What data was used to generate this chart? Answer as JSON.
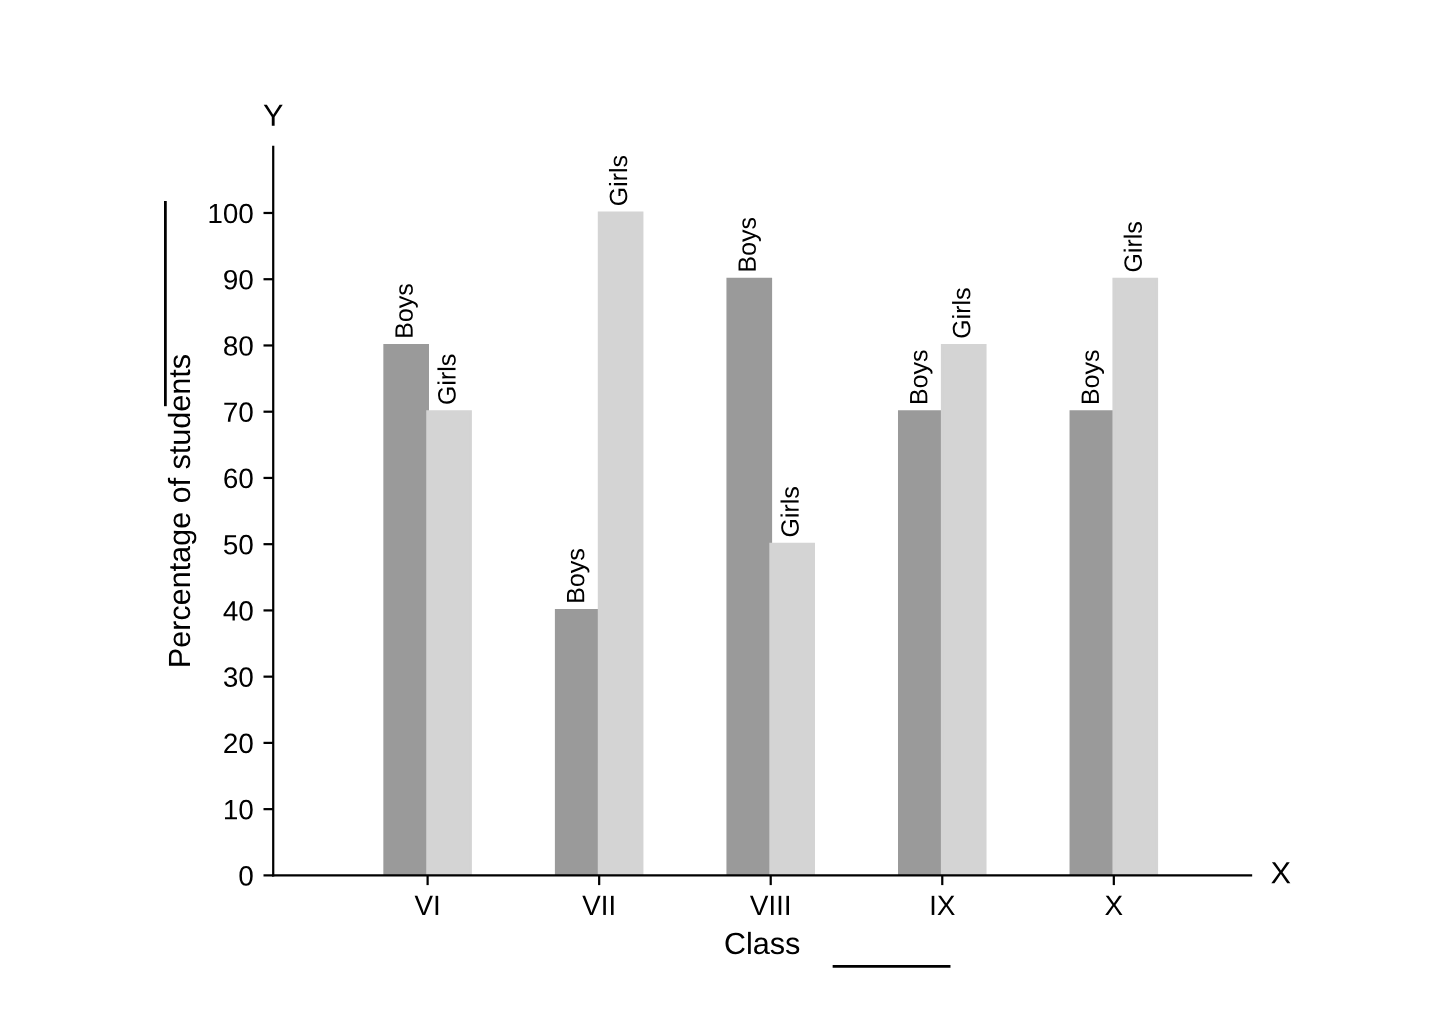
{
  "chart_data": {
    "type": "bar",
    "xlabel": "Class",
    "ylabel": "Percentage of students",
    "annotations": [
      "Y",
      "X"
    ],
    "categories": [
      "VI",
      "VII",
      "VIII",
      "IX",
      "X"
    ],
    "series": [
      {
        "name": "Boys",
        "color": "#9a9a9a",
        "values": [
          80,
          40,
          90,
          70,
          70
        ]
      },
      {
        "name": "Girls",
        "color": "#d4d4d4",
        "values": [
          70,
          100,
          50,
          80,
          90
        ]
      }
    ],
    "ylim": [
      0,
      110
    ],
    "yticks": [
      0,
      10,
      20,
      30,
      40,
      50,
      60,
      70,
      80,
      90,
      100
    ],
    "grid": false,
    "legend": false
  }
}
